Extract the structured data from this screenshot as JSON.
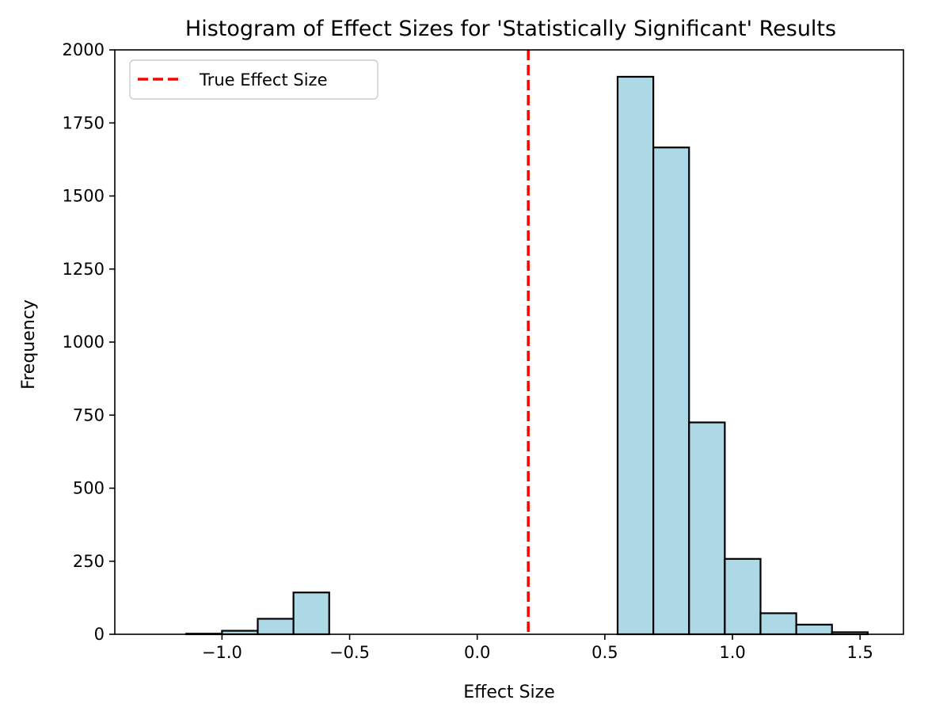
{
  "chart_data": {
    "type": "bar",
    "subtype": "histogram",
    "title": "Histogram of Effect Sizes for 'Statistically Significant' Results",
    "xlabel": "Effect Size",
    "ylabel": "Frequency",
    "xlim": [
      -1.42,
      1.67
    ],
    "ylim": [
      0,
      2000
    ],
    "xticks": [
      {
        "value": -1.0,
        "label": "−1.0"
      },
      {
        "value": -0.5,
        "label": "−0.5"
      },
      {
        "value": 0.0,
        "label": "0.0"
      },
      {
        "value": 0.5,
        "label": "0.5"
      },
      {
        "value": 1.0,
        "label": "1.0"
      },
      {
        "value": 1.5,
        "label": "1.5"
      }
    ],
    "yticks": [
      {
        "value": 0,
        "label": "0"
      },
      {
        "value": 250,
        "label": "250"
      },
      {
        "value": 500,
        "label": "500"
      },
      {
        "value": 750,
        "label": "750"
      },
      {
        "value": 1000,
        "label": "1000"
      },
      {
        "value": 1250,
        "label": "1250"
      },
      {
        "value": 1500,
        "label": "1500"
      },
      {
        "value": 1750,
        "label": "1750"
      },
      {
        "value": 2000,
        "label": "2000"
      }
    ],
    "bins": [
      {
        "x0": -1.14,
        "x1": -1.0,
        "count": 2
      },
      {
        "x0": -1.0,
        "x1": -0.86,
        "count": 12
      },
      {
        "x0": -0.86,
        "x1": -0.72,
        "count": 53
      },
      {
        "x0": -0.72,
        "x1": -0.58,
        "count": 143
      },
      {
        "x0": -0.58,
        "x1": -0.44,
        "count": 0
      },
      {
        "x0": -0.44,
        "x1": -0.3,
        "count": 0
      },
      {
        "x0": -0.3,
        "x1": -0.16,
        "count": 0
      },
      {
        "x0": -0.16,
        "x1": -0.02,
        "count": 0
      },
      {
        "x0": -0.02,
        "x1": 0.12,
        "count": 0
      },
      {
        "x0": 0.12,
        "x1": 0.26,
        "count": 0
      },
      {
        "x0": 0.26,
        "x1": 0.4,
        "count": 0
      },
      {
        "x0": 0.4,
        "x1": 0.55,
        "count": 0
      },
      {
        "x0": 0.55,
        "x1": 0.69,
        "count": 1908
      },
      {
        "x0": 0.69,
        "x1": 0.83,
        "count": 1666
      },
      {
        "x0": 0.83,
        "x1": 0.97,
        "count": 725
      },
      {
        "x0": 0.97,
        "x1": 1.11,
        "count": 258
      },
      {
        "x0": 1.11,
        "x1": 1.25,
        "count": 72
      },
      {
        "x0": 1.25,
        "x1": 1.39,
        "count": 33
      },
      {
        "x0": 1.39,
        "x1": 1.53,
        "count": 7
      }
    ],
    "bar_color": "#add8e6",
    "edge_color": "#000000",
    "reference_line": {
      "x": 0.2,
      "label": "True Effect Size",
      "color": "#ff0000",
      "style": "dashed"
    },
    "legend_position": "top-left",
    "grid": false
  }
}
